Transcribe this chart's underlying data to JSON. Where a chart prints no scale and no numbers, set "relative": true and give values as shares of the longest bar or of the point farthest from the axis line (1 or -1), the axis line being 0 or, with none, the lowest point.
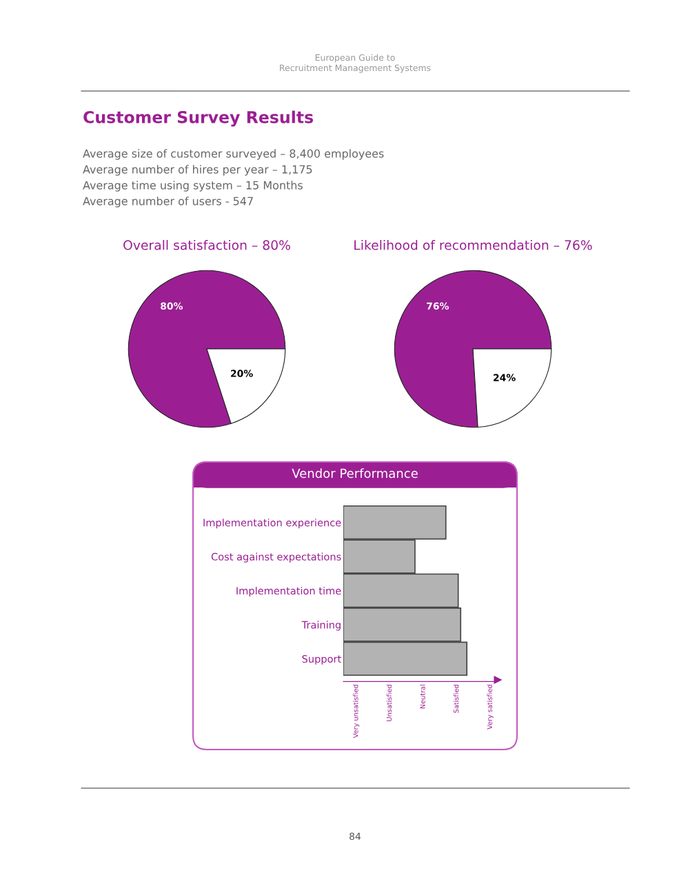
{
  "chart_data": [
    {
      "type": "other",
      "title": "Customer Survey Results",
      "annotations": [
        "European Guide to\nRecruitment Management Systems",
        "Average size of customer surveyed – 8,400 employees",
        "Average number of hires per year – 1,175",
        "Average time using system – 15 Months",
        "Average number of users - 547",
        "84"
      ]
    },
    {
      "type": "pie",
      "title": "Overall satisfaction – 80%",
      "categories": [
        null,
        null
      ],
      "values": [
        80,
        20
      ],
      "colors": [
        "#9b1f93",
        "#ffffff"
      ],
      "value_labels": [
        "80%",
        "20%"
      ]
    },
    {
      "type": "pie",
      "title": "Likelihood of recommendation – 76%",
      "categories": [
        null,
        null
      ],
      "values": [
        76,
        24
      ],
      "colors": [
        "#9b1f93",
        "#ffffff"
      ],
      "value_labels": [
        "76%",
        "24%"
      ]
    },
    {
      "type": "bar",
      "orientation": "horizontal",
      "title": "Vendor Performance",
      "categories": [
        "Implementation experience",
        "Cost against expectations",
        "Implementation time",
        "Training",
        "Support"
      ],
      "values": [
        0.83,
        0.58,
        0.93,
        0.95,
        1
      ],
      "color": "#b3b3b3",
      "relative": true,
      "annotations": [
        "Very unsatisfied",
        "Unsatisfied",
        "Neutral",
        "Satisfied",
        "Very satisfied"
      ]
    }
  ]
}
